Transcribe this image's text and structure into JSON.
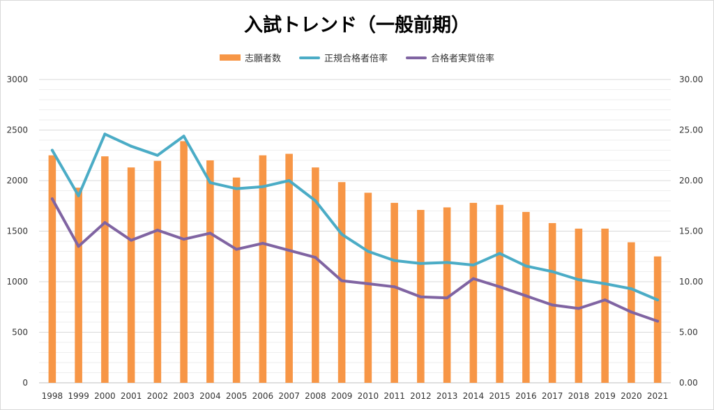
{
  "chart_data": {
    "type": "bar+line",
    "title": "入試トレンド（一般前期）",
    "categories": [
      "1998",
      "1999",
      "2000",
      "2001",
      "2002",
      "2003",
      "2004",
      "2005",
      "2006",
      "2007",
      "2008",
      "2009",
      "2010",
      "2011",
      "2012",
      "2013",
      "2014",
      "2015",
      "2016",
      "2017",
      "2018",
      "2019",
      "2020",
      "2021"
    ],
    "series": [
      {
        "name": "志願者数",
        "type": "bar",
        "axis": "left",
        "color": "#f79646",
        "values": [
          2250,
          1930,
          2240,
          2130,
          2195,
          2390,
          2200,
          2030,
          2250,
          2265,
          2130,
          1985,
          1880,
          1780,
          1710,
          1735,
          1780,
          1760,
          1690,
          1580,
          1525,
          1525,
          1390,
          1250
        ]
      },
      {
        "name": "正規合格者倍率",
        "type": "line",
        "axis": "right",
        "color": "#4bacc6",
        "values": [
          23.0,
          18.5,
          24.6,
          23.4,
          22.5,
          24.4,
          19.8,
          19.2,
          19.4,
          20.0,
          18.0,
          14.7,
          13.0,
          12.1,
          11.8,
          11.9,
          11.65,
          12.8,
          11.55,
          11.0,
          10.2,
          9.8,
          9.3,
          8.2
        ]
      },
      {
        "name": "合格者実質倍率",
        "type": "line",
        "axis": "right",
        "color": "#8064a2",
        "values": [
          18.2,
          13.5,
          15.85,
          14.1,
          15.1,
          14.2,
          14.8,
          13.2,
          13.8,
          13.1,
          12.4,
          10.1,
          9.8,
          9.5,
          8.5,
          8.4,
          10.3,
          9.5,
          8.6,
          7.7,
          7.35,
          8.2,
          7.0,
          6.1
        ]
      }
    ],
    "y_left": {
      "min": 0,
      "max": 3000,
      "step": 500,
      "tick_labels": [
        "0",
        "500",
        "1000",
        "1500",
        "2000",
        "2500",
        "3000"
      ]
    },
    "y_right": {
      "min": 0,
      "max": 30,
      "step": 5,
      "tick_labels": [
        "0.00",
        "5.00",
        "10.00",
        "15.00",
        "20.00",
        "25.00",
        "30.00"
      ]
    },
    "grid": true,
    "legend_position": "top-center"
  },
  "colors": {
    "grid": "#d9d9d9",
    "axis": "#bfbfbf",
    "tick_text": "#333333"
  }
}
